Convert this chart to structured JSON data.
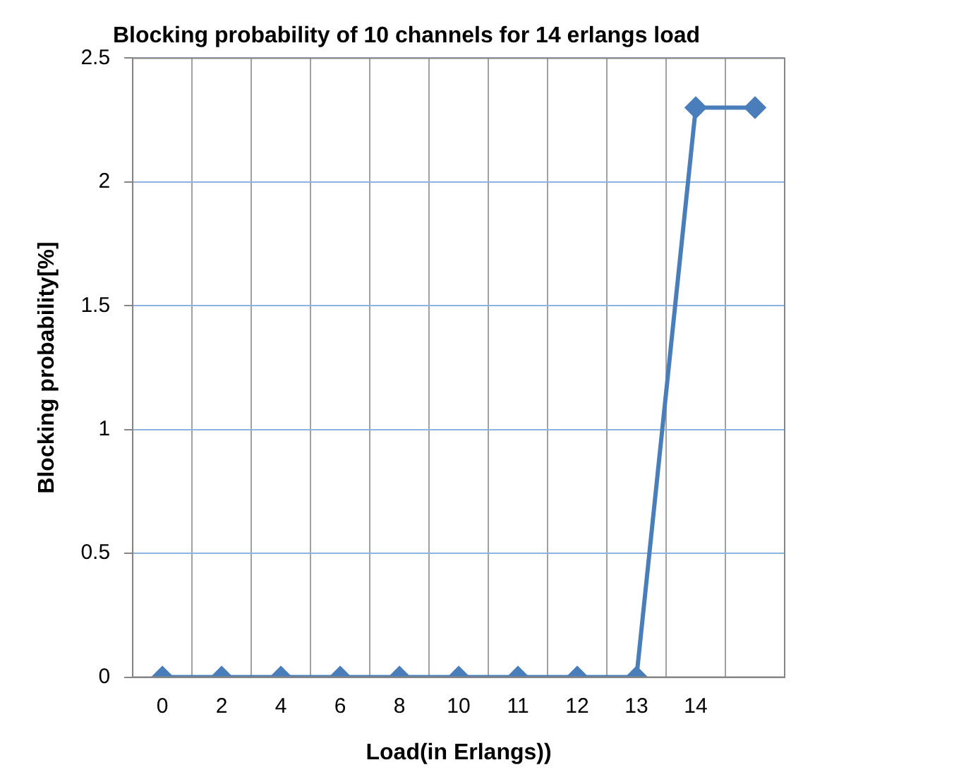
{
  "chart_data": {
    "type": "line",
    "title": "Blocking probability of 10 channels for 14 erlangs load",
    "xlabel": "Load(in Erlangs))",
    "ylabel": "Blocking probability[%]",
    "categories": [
      "0",
      "2",
      "4",
      "6",
      "8",
      "10",
      "11",
      "12",
      "13",
      "14",
      null
    ],
    "series": [
      {
        "color": "#4a7ebb",
        "values": [
          0,
          0,
          0,
          0,
          0,
          0,
          0,
          0,
          0,
          2.3,
          2.3
        ]
      }
    ],
    "ylim": [
      0,
      2.5
    ],
    "yticks": [
      0,
      0.5,
      1,
      1.5,
      2,
      2.5
    ],
    "grid": true,
    "marker": "diamond",
    "line_style": "solid"
  }
}
